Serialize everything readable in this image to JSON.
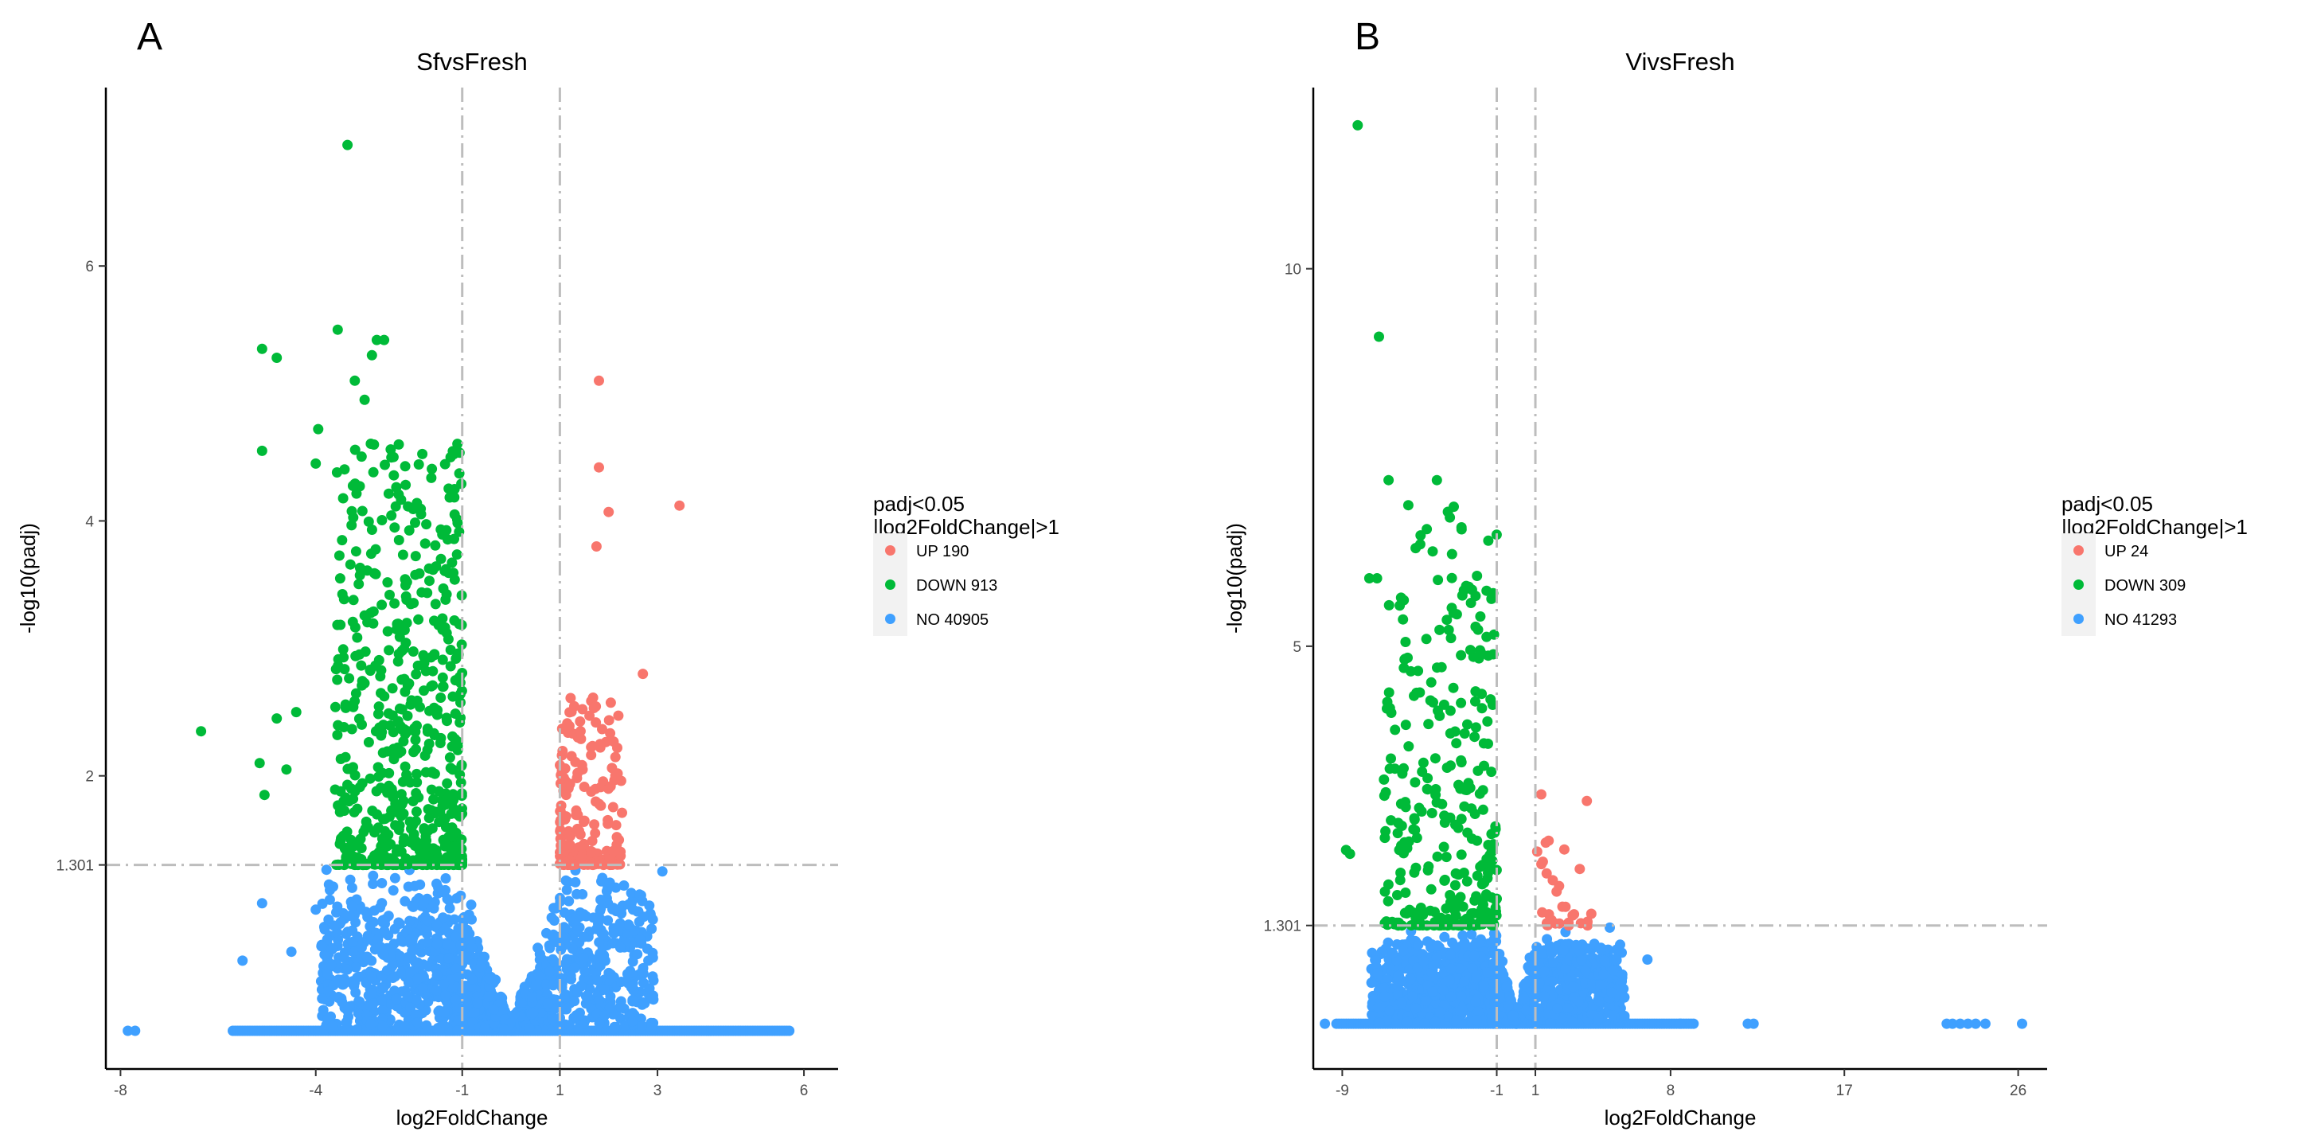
{
  "chart_data": [
    {
      "type": "scatter",
      "panel_label": "A",
      "title": "SfvsFresh",
      "xlabel": "log2FoldChange",
      "ylabel": "-log10(padj)",
      "xlim": [
        -8.3,
        6.7
      ],
      "ylim": [
        -0.3,
        7.4
      ],
      "x_ticks": [
        -8,
        -4,
        -1,
        1,
        3,
        6
      ],
      "x_tick_labels": [
        "-8",
        "-4",
        "-1",
        "1",
        "3",
        "6"
      ],
      "y_ticks": [
        1.301,
        2,
        4,
        6
      ],
      "y_tick_labels": [
        "1.301",
        "2",
        "4",
        "6"
      ],
      "fc_threshold": 1,
      "padj_threshold": 1.301,
      "cloud_max_abs_x": 3.9,
      "cloud_seed": 11,
      "legend": {
        "title_lines": [
          "padj<0.05",
          "|log2FoldChange|>1"
        ],
        "entries": [
          {
            "group": "UP",
            "label": "UP 190",
            "count": 190,
            "color": "#F8766D"
          },
          {
            "group": "DOWN",
            "label": "DOWN 913",
            "count": 913,
            "color": "#00BA38"
          },
          {
            "group": "NO",
            "label": "NO 40905",
            "count": 40905,
            "color": "#3FA0FF"
          }
        ]
      },
      "highlighted_points": [
        {
          "x": -3.35,
          "y": 6.95,
          "group": "DOWN"
        },
        {
          "x": -3.55,
          "y": 5.5,
          "group": "DOWN"
        },
        {
          "x": -2.75,
          "y": 5.42,
          "group": "DOWN"
        },
        {
          "x": -2.6,
          "y": 5.42,
          "group": "DOWN"
        },
        {
          "x": -2.85,
          "y": 5.3,
          "group": "DOWN"
        },
        {
          "x": -3.2,
          "y": 5.1,
          "group": "DOWN"
        },
        {
          "x": -5.1,
          "y": 5.35,
          "group": "DOWN"
        },
        {
          "x": -4.8,
          "y": 5.28,
          "group": "DOWN"
        },
        {
          "x": -3.0,
          "y": 4.95,
          "group": "DOWN"
        },
        {
          "x": -5.1,
          "y": 4.55,
          "group": "DOWN"
        },
        {
          "x": -3.95,
          "y": 4.72,
          "group": "DOWN"
        },
        {
          "x": -4.0,
          "y": 4.45,
          "group": "DOWN"
        },
        {
          "x": -2.3,
          "y": 4.6,
          "group": "DOWN"
        },
        {
          "x": -6.35,
          "y": 2.35,
          "group": "DOWN"
        },
        {
          "x": -5.15,
          "y": 2.1,
          "group": "DOWN"
        },
        {
          "x": -4.8,
          "y": 2.45,
          "group": "DOWN"
        },
        {
          "x": -4.4,
          "y": 2.5,
          "group": "DOWN"
        },
        {
          "x": -4.6,
          "y": 2.05,
          "group": "DOWN"
        },
        {
          "x": -5.05,
          "y": 1.85,
          "group": "DOWN"
        },
        {
          "x": 1.8,
          "y": 5.1,
          "group": "UP"
        },
        {
          "x": 1.8,
          "y": 4.42,
          "group": "UP"
        },
        {
          "x": 3.45,
          "y": 4.12,
          "group": "UP"
        },
        {
          "x": 2.0,
          "y": 4.07,
          "group": "UP"
        },
        {
          "x": 1.75,
          "y": 3.8,
          "group": "UP"
        },
        {
          "x": 2.7,
          "y": 2.8,
          "group": "UP"
        },
        {
          "x": -7.7,
          "y": 0.0,
          "group": "NO"
        },
        {
          "x": -7.85,
          "y": 0.0,
          "group": "NO"
        },
        {
          "x": -5.5,
          "y": 0.55,
          "group": "NO"
        },
        {
          "x": -5.1,
          "y": 1.0,
          "group": "NO"
        },
        {
          "x": -4.5,
          "y": 0.62,
          "group": "NO"
        },
        {
          "x": -4.0,
          "y": 0.95,
          "group": "NO"
        },
        {
          "x": 3.1,
          "y": 1.25,
          "group": "NO"
        },
        {
          "x": 2.5,
          "y": 0.95,
          "group": "NO"
        }
      ]
    },
    {
      "type": "scatter",
      "panel_label": "B",
      "title": "VivsFresh",
      "xlabel": "log2FoldChange",
      "ylabel": "-log10(padj)",
      "xlim": [
        -10.5,
        27.5
      ],
      "ylim": [
        -0.6,
        12.4
      ],
      "x_ticks": [
        -9,
        -1,
        1,
        8,
        17,
        26
      ],
      "x_tick_labels": [
        "-9",
        "-1",
        "1",
        "8",
        "17",
        "26"
      ],
      "y_ticks": [
        1.301,
        5,
        10
      ],
      "y_tick_labels": [
        "1.301",
        "5",
        "10"
      ],
      "fc_threshold": 1,
      "padj_threshold": 1.301,
      "cloud_max_abs_x": 7.5,
      "cloud_seed": 29,
      "legend": {
        "title_lines": [
          "padj<0.05",
          "|log2FoldChange|>1"
        ],
        "entries": [
          {
            "group": "UP",
            "label": "UP 24",
            "count": 24,
            "color": "#F8766D"
          },
          {
            "group": "DOWN",
            "label": "DOWN 309",
            "count": 309,
            "color": "#00BA38"
          },
          {
            "group": "NO",
            "label": "NO 41293",
            "count": 41293,
            "color": "#3FA0FF"
          }
        ]
      },
      "highlighted_points": [
        {
          "x": -8.2,
          "y": 11.9,
          "group": "DOWN"
        },
        {
          "x": -7.1,
          "y": 9.1,
          "group": "DOWN"
        },
        {
          "x": -6.6,
          "y": 7.2,
          "group": "DOWN"
        },
        {
          "x": -4.1,
          "y": 7.2,
          "group": "DOWN"
        },
        {
          "x": -5.2,
          "y": 6.3,
          "group": "DOWN"
        },
        {
          "x": -7.6,
          "y": 5.9,
          "group": "DOWN"
        },
        {
          "x": -7.2,
          "y": 5.9,
          "group": "DOWN"
        },
        {
          "x": -8.8,
          "y": 2.3,
          "group": "DOWN"
        },
        {
          "x": -8.6,
          "y": 2.25,
          "group": "DOWN"
        },
        {
          "x": 3.3,
          "y": 2.05,
          "group": "UP"
        },
        {
          "x": 1.9,
          "y": 1.9,
          "group": "UP"
        },
        {
          "x": 2.1,
          "y": 1.75,
          "group": "UP"
        },
        {
          "x": 3.0,
          "y": 1.45,
          "group": "UP"
        },
        {
          "x": 2.4,
          "y": 1.55,
          "group": "UP"
        },
        {
          "x": 1.7,
          "y": 1.45,
          "group": "UP"
        },
        {
          "x": 3.7,
          "y": 1.35,
          "group": "UP"
        },
        {
          "x": -9.9,
          "y": 0.0,
          "group": "NO"
        },
        {
          "x": 8.5,
          "y": 0.0,
          "group": "NO"
        },
        {
          "x": 12.0,
          "y": 0.0,
          "group": "NO"
        },
        {
          "x": 12.3,
          "y": 0.0,
          "group": "NO"
        },
        {
          "x": 22.3,
          "y": 0.0,
          "group": "NO"
        },
        {
          "x": 22.6,
          "y": 0.0,
          "group": "NO"
        },
        {
          "x": 23.0,
          "y": 0.0,
          "group": "NO"
        },
        {
          "x": 23.4,
          "y": 0.0,
          "group": "NO"
        },
        {
          "x": 23.8,
          "y": 0.0,
          "group": "NO"
        },
        {
          "x": 24.3,
          "y": 0.0,
          "group": "NO"
        },
        {
          "x": 26.2,
          "y": 0.0,
          "group": "NO"
        },
        {
          "x": 6.8,
          "y": 0.85,
          "group": "NO"
        },
        {
          "x": 5.5,
          "y": 0.65,
          "group": "NO"
        }
      ]
    }
  ]
}
